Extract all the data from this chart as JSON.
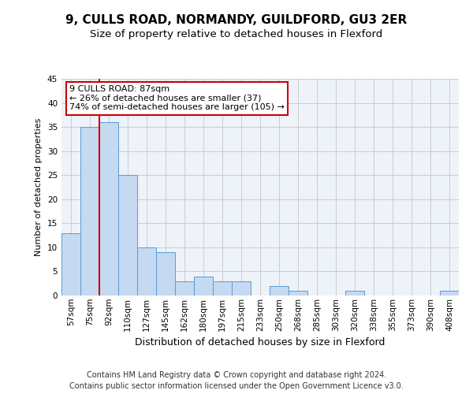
{
  "title": "9, CULLS ROAD, NORMANDY, GUILDFORD, GU3 2ER",
  "subtitle": "Size of property relative to detached houses in Flexford",
  "xlabel": "Distribution of detached houses by size in Flexford",
  "ylabel": "Number of detached properties",
  "categories": [
    "57sqm",
    "75sqm",
    "92sqm",
    "110sqm",
    "127sqm",
    "145sqm",
    "162sqm",
    "180sqm",
    "197sqm",
    "215sqm",
    "233sqm",
    "250sqm",
    "268sqm",
    "285sqm",
    "303sqm",
    "320sqm",
    "338sqm",
    "355sqm",
    "373sqm",
    "390sqm",
    "408sqm"
  ],
  "values": [
    13,
    35,
    36,
    25,
    10,
    9,
    3,
    4,
    3,
    3,
    0,
    2,
    1,
    0,
    0,
    1,
    0,
    0,
    0,
    0,
    1
  ],
  "bar_color": "#c5d9f0",
  "bar_edge_color": "#5b9bd5",
  "vline_x_index": 2,
  "annotation_text": "9 CULLS ROAD: 87sqm\n← 26% of detached houses are smaller (37)\n74% of semi-detached houses are larger (105) →",
  "annotation_box_color": "#ffffff",
  "annotation_box_edge_color": "#cc0000",
  "annotation_text_color": "#000000",
  "vline_color": "#cc0000",
  "ylim": [
    0,
    45
  ],
  "yticks": [
    0,
    5,
    10,
    15,
    20,
    25,
    30,
    35,
    40,
    45
  ],
  "grid_color": "#cccccc",
  "bg_color": "#eef2f9",
  "footer": "Contains HM Land Registry data © Crown copyright and database right 2024.\nContains public sector information licensed under the Open Government Licence v3.0.",
  "title_fontsize": 11,
  "subtitle_fontsize": 9.5,
  "xlabel_fontsize": 9,
  "ylabel_fontsize": 8,
  "tick_fontsize": 7.5,
  "footer_fontsize": 7,
  "annotation_fontsize": 8
}
